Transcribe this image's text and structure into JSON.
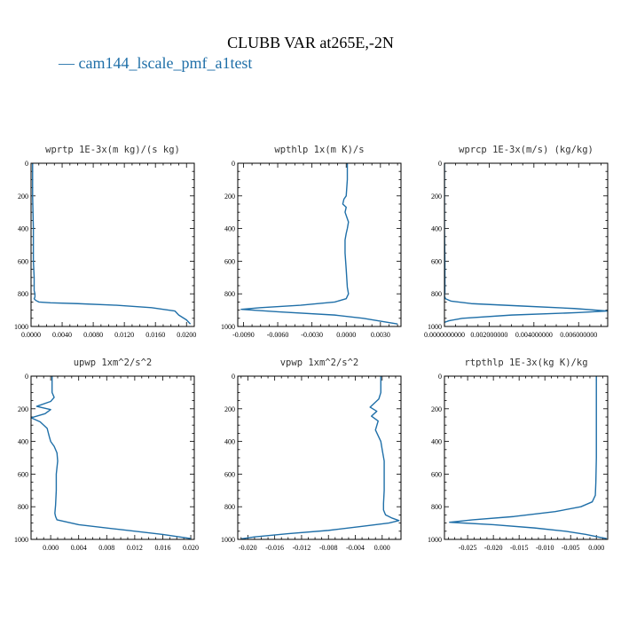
{
  "title": "CLUBB VAR at265E,-2N",
  "legend": [
    {
      "label": "— cam144_lscale_pmf_a1test",
      "color": "#1f6fa8"
    }
  ],
  "chart_data": [
    {
      "type": "line",
      "title": "wprtp  1E-3x(m kg)/(s kg)",
      "xlim": [
        0.0,
        0.021
      ],
      "ylim": [
        1000,
        0
      ],
      "xticks": [
        0.0,
        0.004,
        0.008,
        0.012,
        0.016,
        0.02
      ],
      "xtick_labels": [
        "0.0000",
        "0.0040",
        "0.0080",
        "0.0120",
        "0.0160",
        "0.0200"
      ],
      "yticks": [
        0,
        200,
        400,
        600,
        800,
        1000
      ],
      "ytick_labels": [
        "0",
        "200",
        "400",
        "600",
        "800",
        "1000"
      ],
      "series": [
        {
          "x": [
            0.0002,
            0.0002,
            0.0003,
            0.0003,
            0.0004,
            0.0004,
            0.0005,
            0.0005,
            0.0004,
            0.0006,
            0.001,
            0.0025,
            0.006,
            0.011,
            0.0155,
            0.0185,
            0.019,
            0.02,
            0.0205
          ],
          "y": [
            0,
            200,
            400,
            600,
            700,
            780,
            800,
            820,
            830,
            840,
            850,
            855,
            860,
            870,
            885,
            905,
            930,
            960,
            985
          ]
        }
      ]
    },
    {
      "type": "line",
      "title": "wpthlp  1x(m K)/s",
      "xlim": [
        -0.0095,
        0.0048
      ],
      "ylim": [
        1000,
        0
      ],
      "xticks": [
        -0.009,
        -0.006,
        -0.003,
        0.0,
        0.003
      ],
      "xtick_labels": [
        "-0.0090",
        "-0.0060",
        "-0.0030",
        "0.0000",
        "0.0030"
      ],
      "yticks": [
        0,
        200,
        400,
        600,
        800,
        1000
      ],
      "ytick_labels": [
        "0",
        "200",
        "400",
        "600",
        "800",
        "1000"
      ],
      "series": [
        {
          "x": [
            0.0001,
            0.0001,
            0.0,
            -0.0002,
            -0.0003,
            0.0,
            -0.0001,
            0.0002,
            0.0001,
            0.0,
            -0.0001,
            -0.0001,
            0.0,
            0.0001,
            0.0002,
            0.0,
            -0.001,
            -0.004,
            -0.0075,
            -0.0092,
            -0.006,
            -0.001,
            0.0015,
            0.0032,
            0.0045
          ],
          "y": [
            0,
            100,
            200,
            220,
            250,
            270,
            300,
            360,
            400,
            430,
            470,
            550,
            650,
            760,
            800,
            830,
            850,
            870,
            885,
            895,
            910,
            930,
            950,
            970,
            985
          ]
        }
      ]
    },
    {
      "type": "line",
      "title": "wprcp  1E-3x(m/s) (kg/kg)",
      "xlim": [
        0.0,
        0.0073
      ],
      "ylim": [
        1000,
        0
      ],
      "xticks": [
        0.0,
        0.002,
        0.004,
        0.006
      ],
      "xtick_labels": [
        "0.0000000000",
        "0.002000000",
        "0.004000000",
        "0.006000000"
      ],
      "yticks": [
        0,
        200,
        400,
        600,
        800,
        1000
      ],
      "ytick_labels": [
        "0",
        "200",
        "400",
        "600",
        "800",
        "1000"
      ],
      "series": [
        {
          "x": [
            0.0,
            0.0,
            2e-05,
            2e-05,
            0.0,
            5e-05,
            0.0003,
            0.0012,
            0.0035,
            0.0058,
            0.0073,
            0.006,
            0.003,
            0.0008,
            0.0002,
            0.0
          ],
          "y": [
            0,
            400,
            600,
            790,
            815,
            830,
            845,
            860,
            875,
            890,
            905,
            915,
            930,
            950,
            965,
            975
          ]
        }
      ]
    },
    {
      "type": "line",
      "title": "upwp  1xm^2/s^2",
      "xlim": [
        -0.0028,
        0.0205
      ],
      "ylim": [
        1000,
        0
      ],
      "xticks": [
        0.0,
        0.004,
        0.008,
        0.012,
        0.016,
        0.02
      ],
      "xtick_labels": [
        "0.000",
        "0.004",
        "0.008",
        "0.012",
        "0.016",
        "0.020"
      ],
      "yticks": [
        0,
        200,
        400,
        600,
        800,
        1000
      ],
      "ytick_labels": [
        "0",
        "200",
        "400",
        "600",
        "800",
        "1000"
      ],
      "series": [
        {
          "x": [
            0.0002,
            0.0002,
            0.0005,
            0.0,
            -0.002,
            0.0,
            -0.0008,
            -0.0028,
            -0.0015,
            -0.0005,
            -0.0002,
            0.0,
            0.0005,
            0.0009,
            0.001,
            0.0008,
            0.0008,
            0.0007,
            0.0006,
            0.0007,
            0.0009,
            0.004,
            0.01,
            0.016,
            0.02
          ],
          "y": [
            0,
            100,
            130,
            155,
            185,
            205,
            230,
            255,
            280,
            320,
            370,
            400,
            430,
            470,
            520,
            600,
            700,
            790,
            840,
            860,
            880,
            910,
            940,
            970,
            995
          ]
        }
      ]
    },
    {
      "type": "line",
      "title": "vpwp  1xm^2/s^2",
      "xlim": [
        -0.0215,
        0.0028
      ],
      "ylim": [
        1000,
        0
      ],
      "xticks": [
        -0.02,
        -0.016,
        -0.012,
        -0.008,
        -0.004,
        0.0
      ],
      "xtick_labels": [
        "-0.020",
        "-0.016",
        "-0.012",
        "-0.008",
        "-0.004",
        "0.000"
      ],
      "yticks": [
        0,
        200,
        400,
        600,
        800,
        1000
      ],
      "ytick_labels": [
        "0",
        "200",
        "400",
        "600",
        "800",
        "1000"
      ],
      "series": [
        {
          "x": [
            -0.0002,
            -0.0002,
            -0.0005,
            -0.0018,
            -0.0008,
            -0.0016,
            -0.0006,
            -0.001,
            -0.0002,
            0.0,
            0.0003,
            0.0003,
            0.0003,
            0.0002,
            0.0002,
            0.0005,
            0.0015,
            0.0025,
            0.001,
            -0.003,
            -0.008,
            -0.014,
            -0.019,
            -0.021
          ],
          "y": [
            0,
            100,
            140,
            190,
            215,
            245,
            275,
            330,
            400,
            450,
            520,
            600,
            700,
            780,
            820,
            850,
            870,
            885,
            900,
            920,
            945,
            965,
            985,
            997
          ]
        }
      ]
    },
    {
      "type": "line",
      "title": "rtpthlp  1E-3x(kg K)/kg",
      "xlim": [
        -0.0295,
        0.0022
      ],
      "ylim": [
        1000,
        0
      ],
      "xticks": [
        -0.025,
        -0.02,
        -0.015,
        -0.01,
        -0.005,
        0.0
      ],
      "xtick_labels": [
        "-0.025",
        "-0.020",
        "-0.015",
        "-0.010",
        "-0.005",
        "0.000"
      ],
      "yticks": [
        0,
        200,
        400,
        600,
        800,
        1000
      ],
      "ytick_labels": [
        "0",
        "200",
        "400",
        "600",
        "800",
        "1000"
      ],
      "series": [
        {
          "x": [
            0.0,
            0.0,
            -0.0001,
            -0.0002,
            -0.0008,
            -0.003,
            -0.008,
            -0.016,
            -0.024,
            -0.0285,
            -0.02,
            -0.012,
            -0.006,
            -0.002,
            0.0008,
            0.002
          ],
          "y": [
            0,
            500,
            650,
            730,
            770,
            800,
            830,
            860,
            880,
            895,
            910,
            930,
            950,
            970,
            988,
            995
          ]
        }
      ]
    }
  ]
}
